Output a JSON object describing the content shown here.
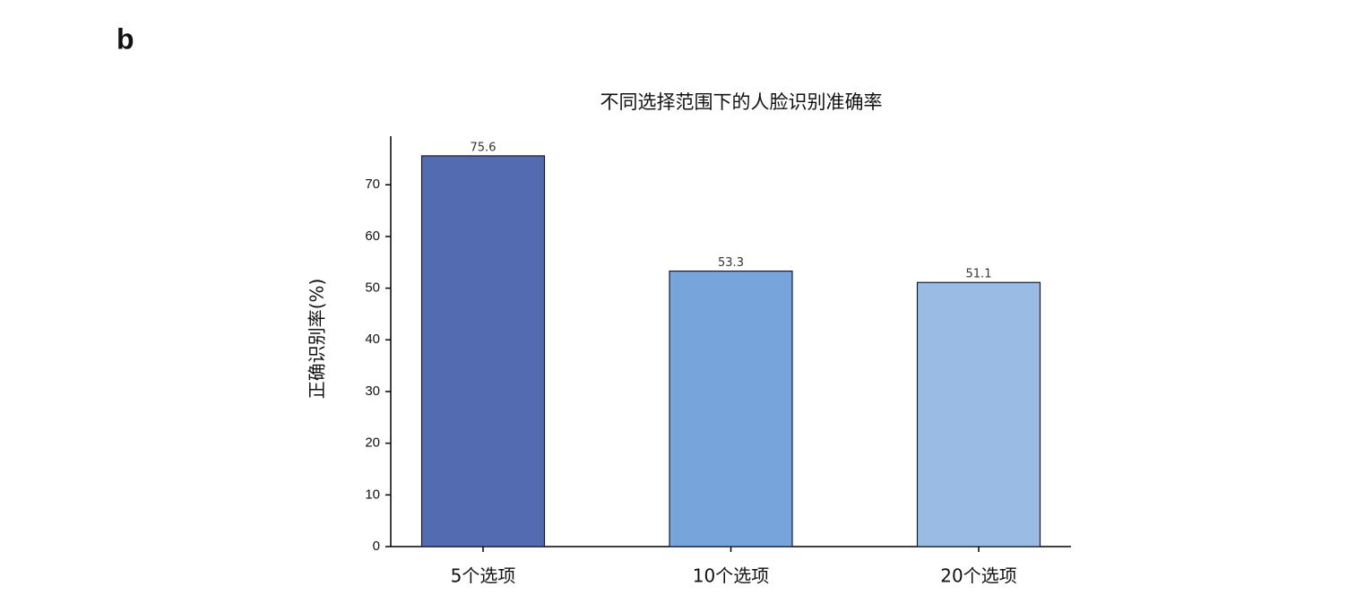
{
  "chart_data": {
    "type": "bar",
    "panel_label": "b",
    "title": "不同选择范围下的人脸识别准确率",
    "y_label": "正确识别率(%)",
    "categories": [
      "5个选项",
      "10个选项",
      "20个选项"
    ],
    "values": [
      75.6,
      53.3,
      51.1
    ],
    "colors": [
      "#536bb0",
      "#78a4dc",
      "#9abbe4"
    ],
    "ylim": [
      0,
      79.4
    ],
    "yticks": [
      0,
      10,
      20,
      30,
      40,
      50,
      60,
      70
    ],
    "grid": false
  }
}
